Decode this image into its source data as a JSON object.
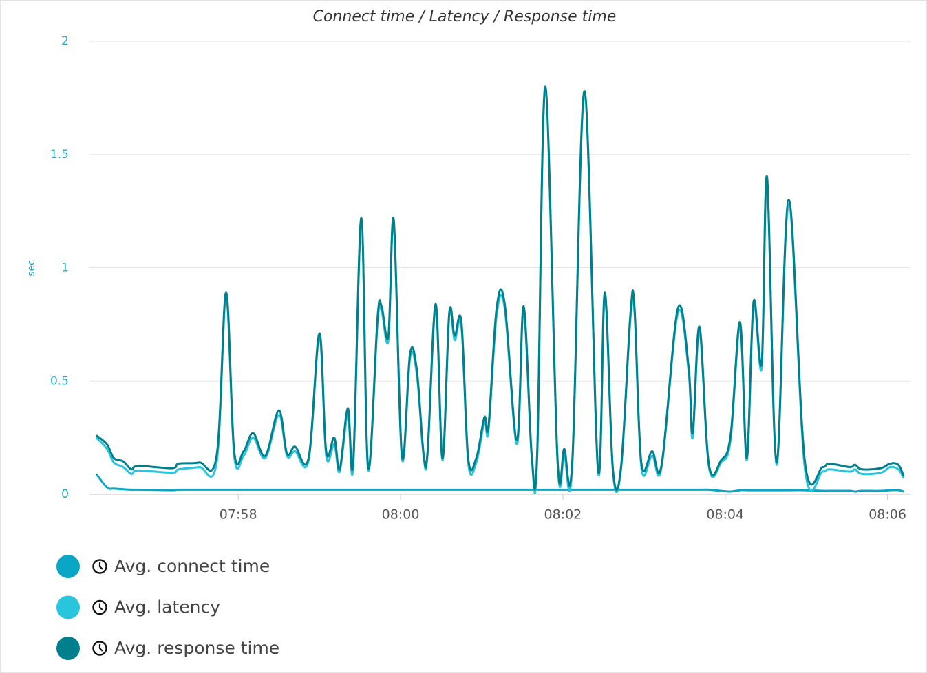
{
  "chart_data": {
    "type": "line",
    "title": "Connect time / Latency / Response time",
    "y_label": "sec",
    "ylim": [
      0,
      2
    ],
    "yticks": [
      0,
      0.5,
      1,
      1.5,
      2
    ],
    "xlim": [
      "07:56:10",
      "08:06:17"
    ],
    "xticks": [
      {
        "value": "07:58:00",
        "label": "07:58"
      },
      {
        "value": "08:00:00",
        "label": "08:00"
      },
      {
        "value": "08:02:00",
        "label": "08:02"
      },
      {
        "value": "08:04:00",
        "label": "08:04"
      },
      {
        "value": "08:06:00",
        "label": "08:06"
      }
    ],
    "grid": true,
    "legend": "bottom",
    "x": [
      "07:56:15",
      "07:56:23",
      "07:56:28",
      "07:56:35",
      "07:56:41",
      "07:56:46",
      "07:57:11",
      "07:57:16",
      "07:57:31",
      "07:57:44",
      "07:57:51",
      "07:57:57",
      "07:58:04",
      "07:58:11",
      "07:58:20",
      "07:58:30",
      "07:58:36",
      "07:58:42",
      "07:58:52",
      "07:59:00",
      "07:59:05",
      "07:59:11",
      "07:59:15",
      "07:59:21",
      "07:59:25",
      "07:59:31",
      "07:59:36",
      "07:59:43",
      "07:59:46",
      "07:59:51",
      "07:59:55",
      "08:00:01",
      "08:00:07",
      "08:00:12",
      "08:00:17",
      "08:00:20",
      "08:00:26",
      "08:00:31",
      "08:00:36",
      "08:00:40",
      "08:00:45",
      "08:00:50",
      "08:00:56",
      "08:01:02",
      "08:01:05",
      "08:01:11",
      "08:01:17",
      "08:01:26",
      "08:01:31",
      "08:01:37",
      "08:01:41",
      "08:01:47",
      "08:01:56",
      "08:02:01",
      "08:02:07",
      "08:02:16",
      "08:02:26",
      "08:02:31",
      "08:02:37",
      "08:02:43",
      "08:02:50",
      "08:02:53",
      "08:02:58",
      "08:03:06",
      "08:03:13",
      "08:03:25",
      "08:03:33",
      "08:03:36",
      "08:03:41",
      "08:03:48",
      "08:03:57",
      "08:04:04",
      "08:04:11",
      "08:04:16",
      "08:04:21",
      "08:04:27",
      "08:04:31",
      "08:04:38",
      "08:04:47",
      "08:04:59",
      "08:05:12",
      "08:05:17",
      "08:05:32",
      "08:05:36",
      "08:05:41",
      "08:05:55",
      "08:06:02",
      "08:06:08",
      "08:06:12"
    ],
    "series": [
      {
        "name": "Avg. connect time",
        "color": "#0aa6c5",
        "values": [
          0.09,
          0.03,
          0.025,
          0.022,
          0.02,
          0.02,
          0.018,
          0.02,
          0.02,
          0.02,
          0.02,
          0.02,
          0.02,
          0.02,
          0.02,
          0.02,
          0.02,
          0.02,
          0.02,
          0.02,
          0.02,
          0.02,
          0.02,
          0.02,
          0.02,
          0.02,
          0.02,
          0.02,
          0.02,
          0.02,
          0.02,
          0.02,
          0.02,
          0.02,
          0.02,
          0.02,
          0.02,
          0.02,
          0.02,
          0.02,
          0.02,
          0.02,
          0.02,
          0.02,
          0.02,
          0.02,
          0.02,
          0.02,
          0.02,
          0.02,
          0.02,
          0.02,
          0.02,
          0.02,
          0.02,
          0.02,
          0.02,
          0.02,
          0.02,
          0.02,
          0.02,
          0.02,
          0.02,
          0.02,
          0.02,
          0.02,
          0.02,
          0.02,
          0.02,
          0.02,
          0.015,
          0.012,
          0.018,
          0.018,
          0.018,
          0.018,
          0.018,
          0.018,
          0.018,
          0.018,
          0.015,
          0.015,
          0.015,
          0.012,
          0.015,
          0.015,
          0.018,
          0.018,
          0.012
        ]
      },
      {
        "name": "Avg. latency",
        "color": "#29c5dc",
        "values": [
          0.25,
          0.2,
          0.14,
          0.12,
          0.09,
          0.105,
          0.095,
          0.11,
          0.12,
          0.14,
          0.87,
          0.17,
          0.17,
          0.25,
          0.16,
          0.35,
          0.17,
          0.19,
          0.15,
          0.69,
          0.17,
          0.22,
          0.1,
          0.35,
          0.12,
          1.2,
          0.11,
          0.76,
          0.81,
          0.68,
          1.19,
          0.16,
          0.6,
          0.53,
          0.17,
          0.18,
          0.82,
          0.15,
          0.79,
          0.68,
          0.74,
          0.14,
          0.14,
          0.32,
          0.28,
          0.79,
          0.82,
          0.22,
          0.81,
          0.16,
          0.16,
          1.78,
          0.15,
          0.17,
          0.13,
          1.76,
          0.1,
          0.87,
          0.1,
          0.11,
          0.78,
          0.8,
          0.12,
          0.17,
          0.12,
          0.8,
          0.54,
          0.25,
          0.72,
          0.12,
          0.14,
          0.24,
          0.74,
          0.15,
          0.83,
          0.56,
          1.38,
          0.13,
          1.28,
          0.11,
          0.1,
          0.11,
          0.1,
          0.11,
          0.09,
          0.095,
          0.12,
          0.11,
          0.07
        ]
      },
      {
        "name": "Avg. response time",
        "color": "#007f8c",
        "values": [
          0.26,
          0.22,
          0.16,
          0.145,
          0.11,
          0.125,
          0.115,
          0.135,
          0.14,
          0.17,
          0.89,
          0.19,
          0.19,
          0.27,
          0.17,
          0.37,
          0.18,
          0.21,
          0.16,
          0.71,
          0.19,
          0.25,
          0.11,
          0.38,
          0.14,
          1.22,
          0.12,
          0.78,
          0.83,
          0.7,
          1.21,
          0.17,
          0.62,
          0.55,
          0.18,
          0.19,
          0.84,
          0.16,
          0.8,
          0.7,
          0.76,
          0.16,
          0.16,
          0.34,
          0.3,
          0.82,
          0.84,
          0.24,
          0.83,
          0.17,
          0.18,
          1.8,
          0.16,
          0.2,
          0.15,
          1.78,
          0.11,
          0.89,
          0.11,
          0.12,
          0.8,
          0.82,
          0.14,
          0.19,
          0.13,
          0.82,
          0.56,
          0.27,
          0.74,
          0.13,
          0.15,
          0.26,
          0.76,
          0.16,
          0.85,
          0.58,
          1.4,
          0.14,
          1.3,
          0.14,
          0.12,
          0.135,
          0.12,
          0.13,
          0.11,
          0.115,
          0.135,
          0.13,
          0.08
        ]
      }
    ]
  }
}
